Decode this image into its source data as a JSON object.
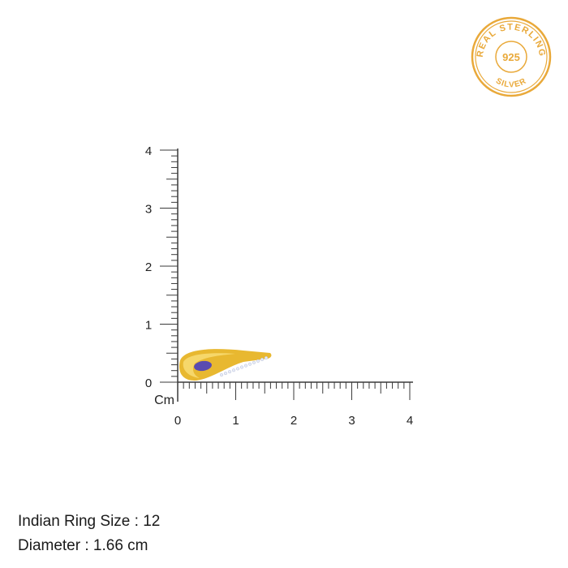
{
  "seal": {
    "top_text": "REAL STERLING",
    "center_text": "925",
    "bottom_text": "SILVER",
    "color": "#E9A93A"
  },
  "ruler": {
    "unit": "Cm",
    "x_labels": [
      "0",
      "1",
      "2",
      "3",
      "4"
    ],
    "y_labels": [
      "0",
      "1",
      "2",
      "3",
      "4"
    ],
    "max_cm": 4,
    "color": "#3a3a3a"
  },
  "product": {
    "gold_color": "#E8B830",
    "stone_color": "#5a4bb0",
    "length_cm": 1.66
  },
  "info": {
    "ring_size": "Indian Ring Size : 12",
    "diameter": "Diameter : 1.66 cm"
  }
}
